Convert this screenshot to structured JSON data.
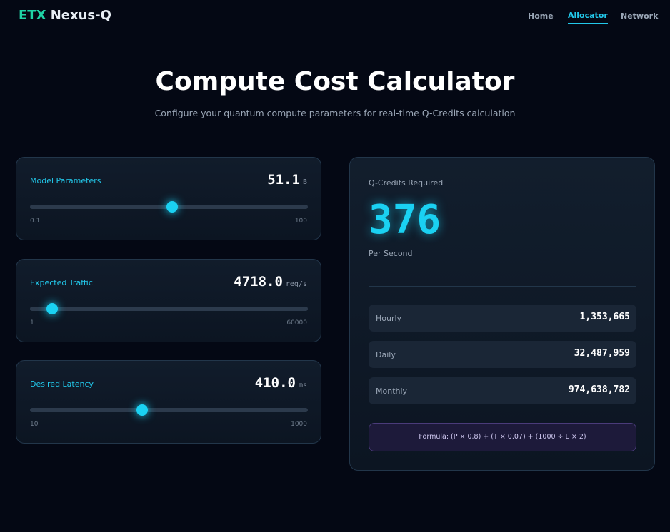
{
  "header": {
    "logo": {
      "prefix": "ETX",
      "name": "Nexus-Q"
    },
    "nav": [
      "Home",
      "Allocator",
      "Network"
    ]
  },
  "hero": {
    "title": "Compute Cost Calculator",
    "subtitle": "Configure your quantum compute parameters for real-time Q-Credits calculation"
  },
  "sliders": [
    {
      "label": "Model Parameters",
      "value": "51.1",
      "unit": "B",
      "min": "0.1",
      "max": "100"
    },
    {
      "label": "Expected Traffic",
      "value": "4718.0",
      "unit": "req/s",
      "min": "1",
      "max": "60000"
    },
    {
      "label": "Desired Latency",
      "value": "410.0",
      "unit": "ms",
      "min": "10",
      "max": "1000"
    }
  ],
  "result": {
    "label": "Q-Credits Required",
    "value": "376",
    "period": "Per Second",
    "breakdown": [
      {
        "label": "Hourly",
        "value": "1,353,665"
      },
      {
        "label": "Daily",
        "value": "32,487,959"
      },
      {
        "label": "Monthly",
        "value": "974,638,782"
      }
    ],
    "formula": "Formula: (P × 0.8) + (T × 0.07) + (1000 ÷ L × 2)"
  }
}
